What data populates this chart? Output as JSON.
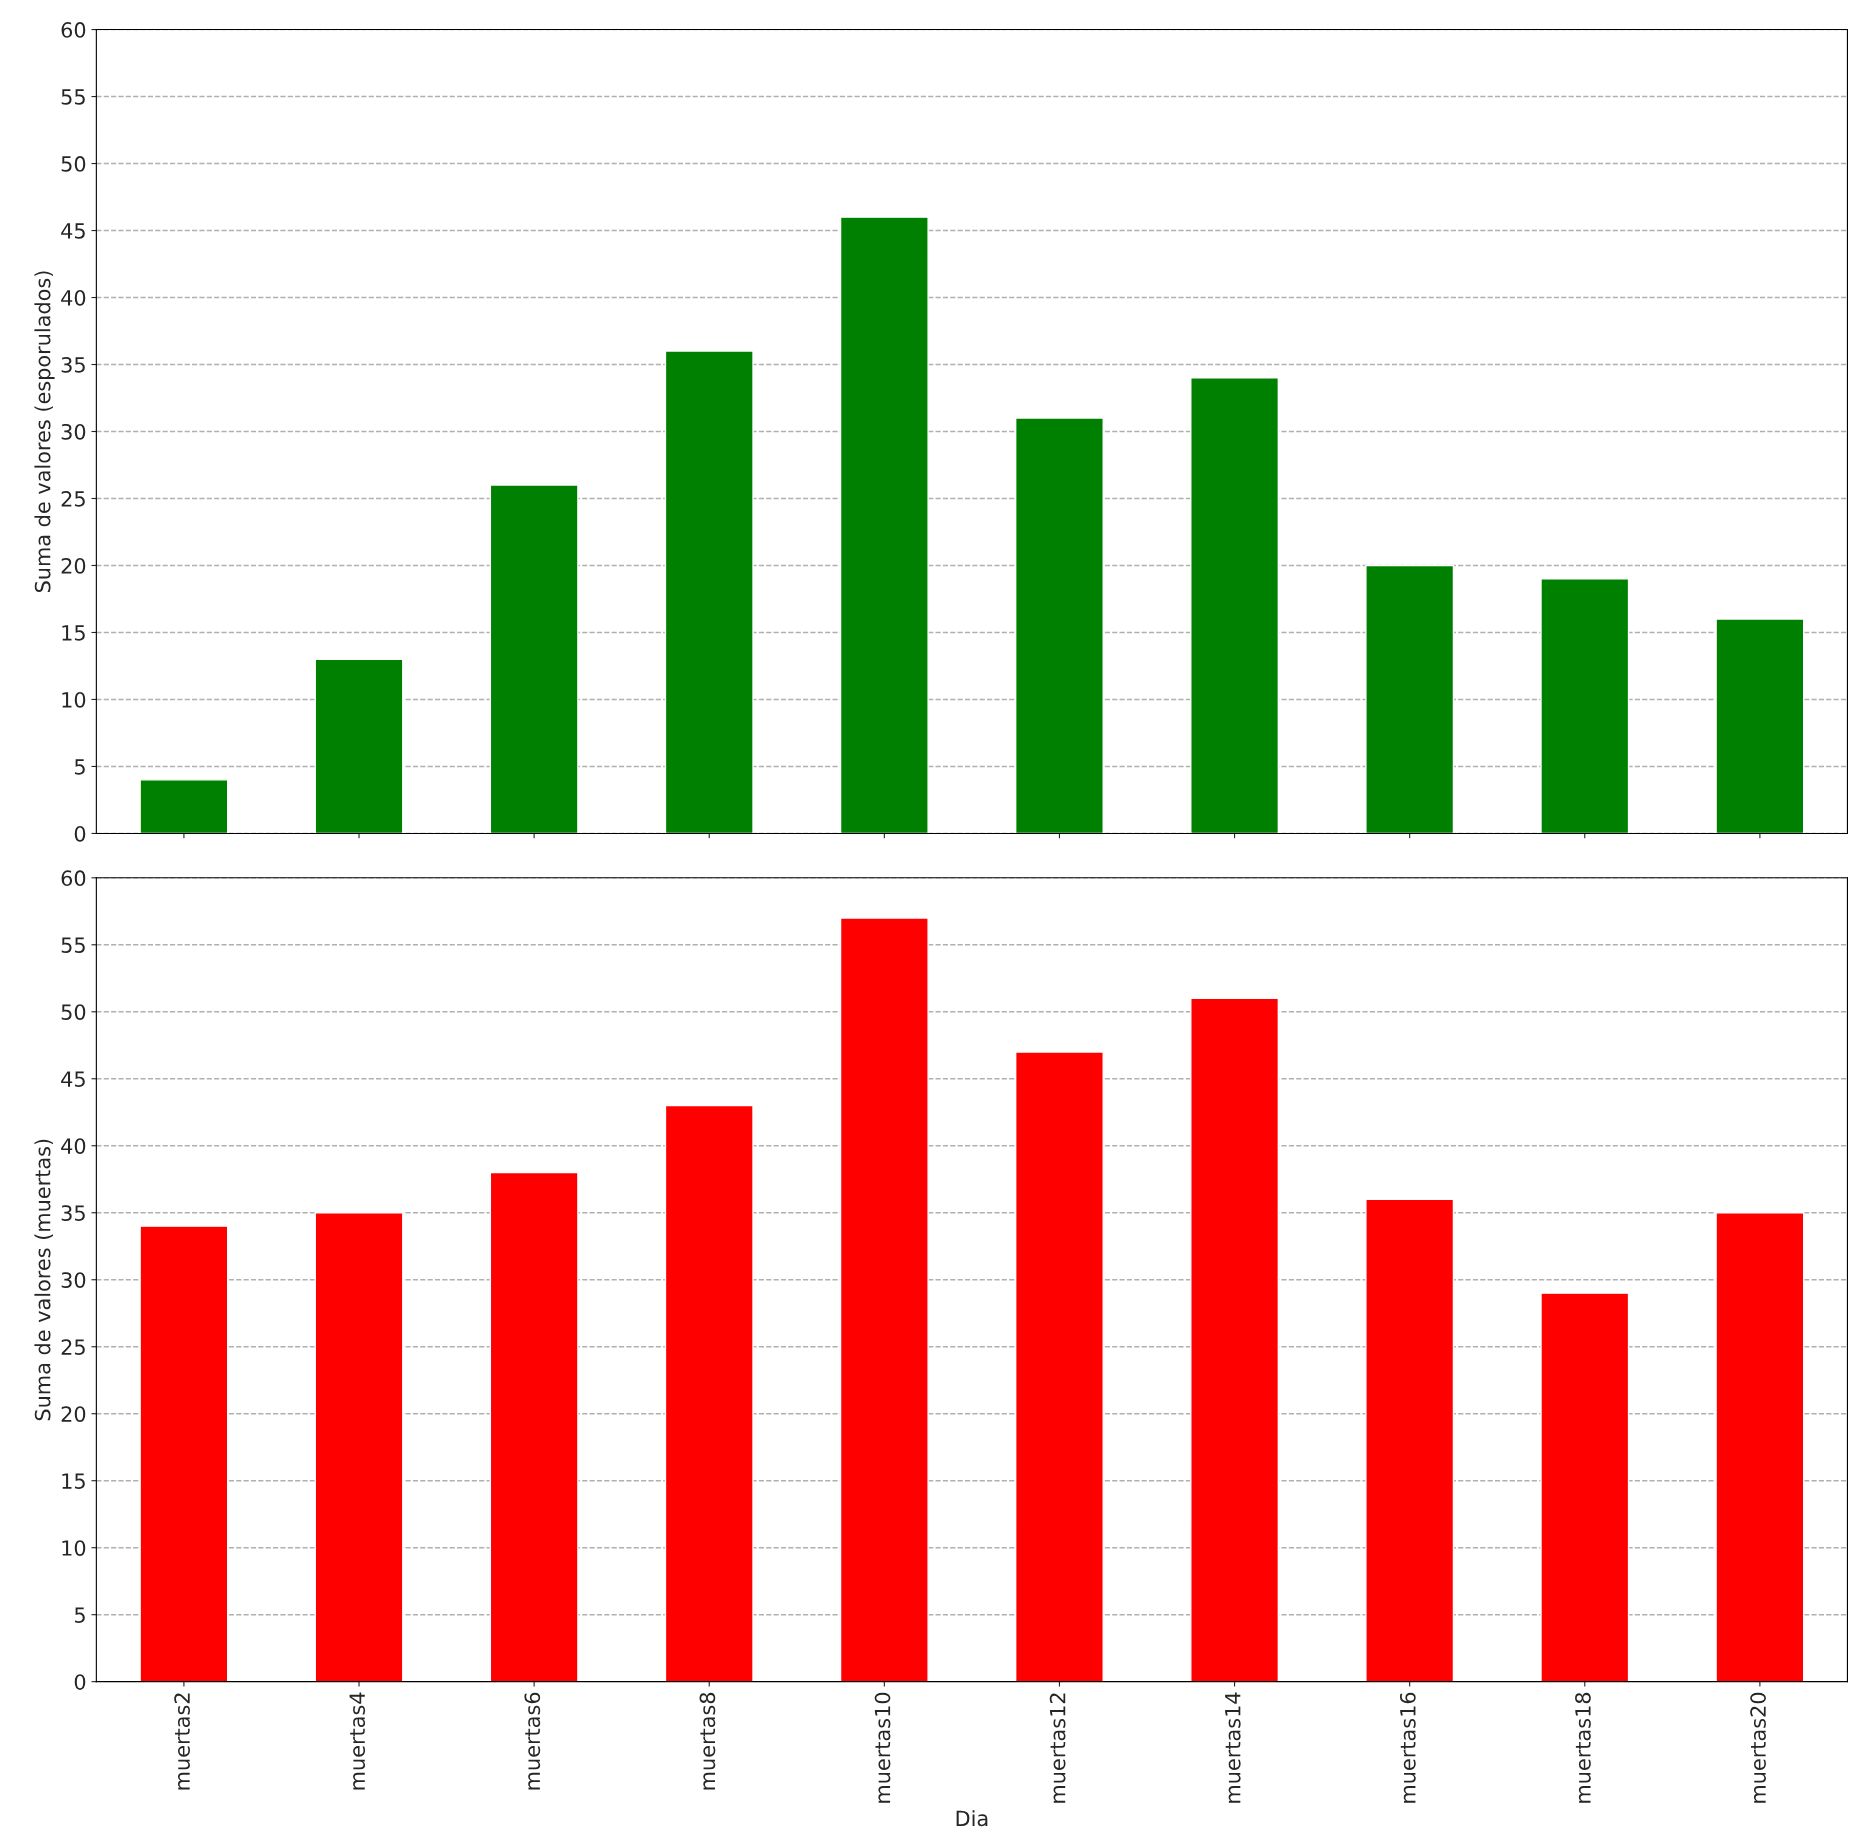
{
  "chart_data": [
    {
      "type": "bar",
      "ylabel": "Suma de valores (esporulados)",
      "categories": [
        null,
        null,
        null,
        null,
        null,
        null,
        null,
        null,
        null,
        null
      ],
      "series": [
        {
          "color": "#008000",
          "values": [
            4,
            13,
            26,
            36,
            46,
            31,
            34,
            20,
            19,
            16
          ]
        }
      ],
      "ylim": [
        0,
        60
      ],
      "yticks": [
        0,
        5,
        10,
        15,
        20,
        25,
        30,
        35,
        40,
        45,
        50,
        55,
        60
      ],
      "grid": "y",
      "tick_labels": "y"
    },
    {
      "type": "bar",
      "ylabel": "Suma de valores (muertas)",
      "xlabel": "Dia",
      "categories": [
        "muertas2",
        "muertas4",
        "muertas6",
        "muertas8",
        "muertas10",
        "muertas12",
        "muertas14",
        "muertas16",
        "muertas18",
        "muertas20"
      ],
      "series": [
        {
          "color": "#ff0000",
          "values": [
            34,
            35,
            38,
            43,
            57,
            47,
            51,
            36,
            29,
            35
          ]
        }
      ],
      "ylim": [
        0,
        60
      ],
      "yticks": [
        0,
        5,
        10,
        15,
        20,
        25,
        30,
        35,
        40,
        45,
        50,
        55,
        60
      ],
      "grid": "y"
    }
  ]
}
